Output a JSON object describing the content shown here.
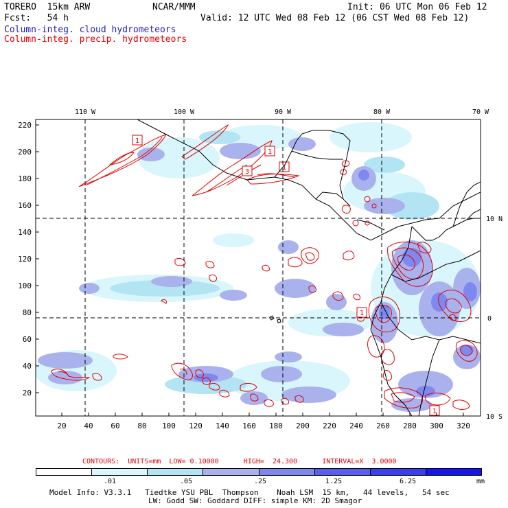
{
  "header": {
    "model": "TORERO  15km ARW",
    "center": "NCAR/MMM",
    "init": "Init: 06 UTC Mon 06 Feb 12",
    "fcst": "Fcst:   54 h",
    "valid": "Valid: 12 UTC Wed 08 Feb 12 (06 CST Wed 08 Feb 12)",
    "field1": "Column-integ. cloud hydrometeors",
    "field2": "Column-integ. precip. hydrometeors"
  },
  "map": {
    "lon_labels": [
      "110 W",
      "100 W",
      "90 W",
      "80 W",
      "70 W"
    ],
    "lat_labels": [
      "10 N",
      "0",
      "10 S"
    ],
    "y_ticks": [
      "220",
      "200",
      "180",
      "160",
      "140",
      "120",
      "100",
      "80",
      "60",
      "40",
      "20"
    ],
    "x_ticks": [
      "20",
      "40",
      "60",
      "80",
      "100",
      "120",
      "140",
      "160",
      "180",
      "200",
      "220",
      "240",
      "260",
      "280",
      "300",
      "320"
    ],
    "box_labels": [
      "1",
      "1",
      "3",
      "1",
      "1",
      "1"
    ]
  },
  "contours": {
    "text": "CONTOURS:  UNITS=mm  LOW= 0.10000      HIGH=  24.300      INTERVAL=X  3.0000"
  },
  "legend": {
    "tick_labels": [
      ".01",
      ".05",
      ".25",
      "1.25",
      "6.25"
    ],
    "unit": "mm",
    "colors": [
      "#ffffff",
      "#d8f6fb",
      "#b2e4f4",
      "#aab2ee",
      "#7f88ef",
      "#5a5ef0",
      "#3a3ff2",
      "#1616f0"
    ]
  },
  "footer": {
    "line1": "Model Info: V3.3.1   Tiedtke YSU PBL  Thompson    Noah LSM  15 km,   44 levels,   54 sec",
    "line2": "LW: Godd SW: Goddard DIFF: simple KM: 2D Smagor"
  }
}
